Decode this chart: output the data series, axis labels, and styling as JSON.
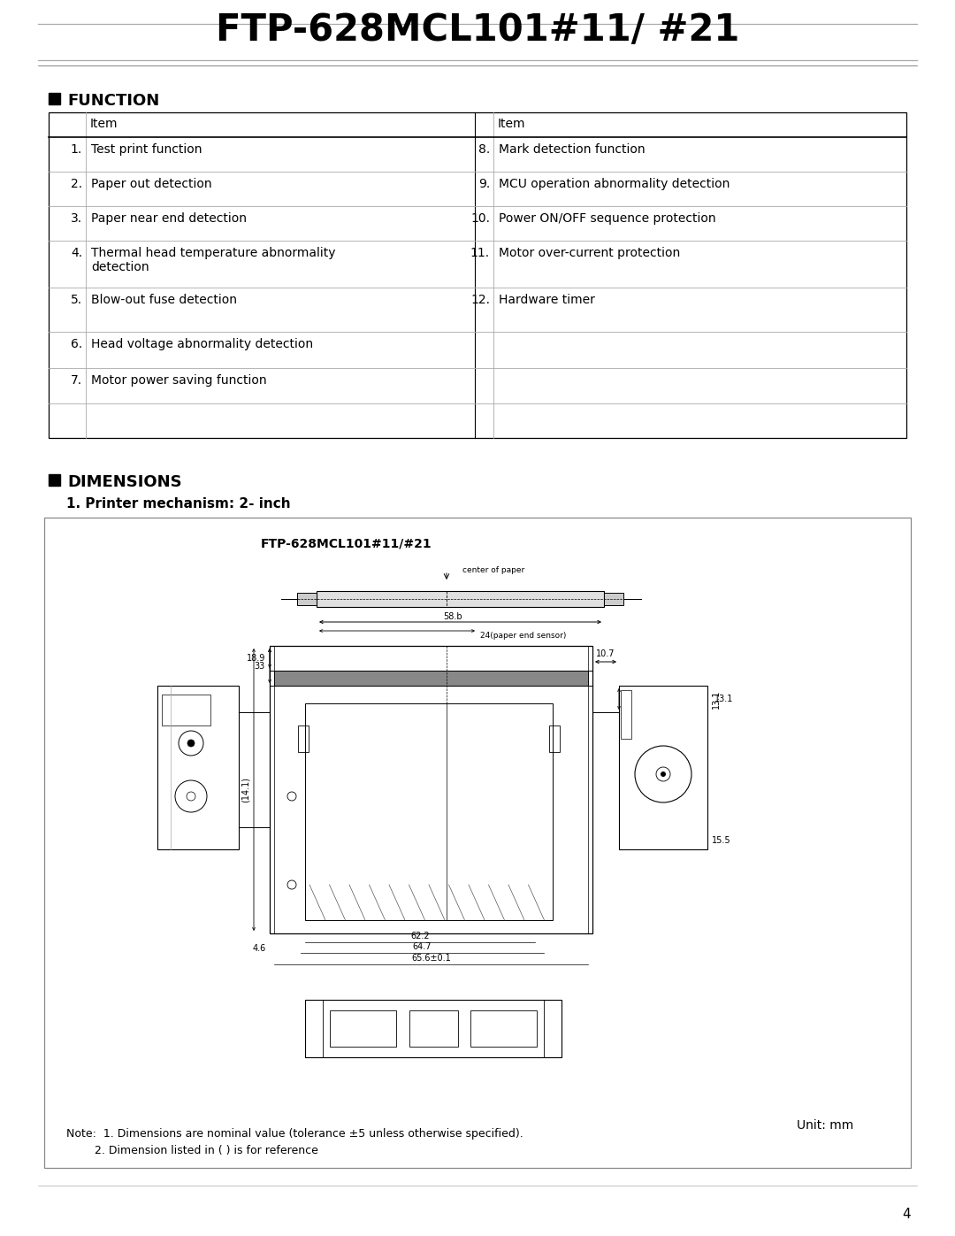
{
  "title": "FTP-628MCL101#11/ #21",
  "title_fontsize": 30,
  "title_fontweight": "bold",
  "page_bg": "#ffffff",
  "section1_header": "FUNCTION",
  "section2_header": "DIMENSIONS",
  "dimensions_sub": "1. Printer mechanism: 2- inch",
  "diagram_title": "FTP-628MCL101#11/#21",
  "table_col1_header": "Item",
  "table_col2_header": "Item",
  "table_rows_left": [
    [
      "1.",
      "Test print function"
    ],
    [
      "2.",
      "Paper out detection"
    ],
    [
      "3.",
      "Paper near end detection"
    ],
    [
      "4.",
      "Thermal head temperature abnormality\ndetection"
    ],
    [
      "5.",
      "Blow-out fuse detection"
    ],
    [
      "6.",
      "Head voltage abnormality detection"
    ],
    [
      "7.",
      "Motor power saving function"
    ]
  ],
  "table_rows_right": [
    [
      "8.",
      "Mark detection function"
    ],
    [
      "9.",
      "MCU operation abnormality detection"
    ],
    [
      "10.",
      "Power ON/OFF sequence protection"
    ],
    [
      "11.",
      "Motor over-current protection"
    ],
    [
      "12.",
      "Hardware timer"
    ],
    [
      "",
      ""
    ],
    [
      "",
      ""
    ]
  ],
  "note_line1": "Note:  1. Dimensions are nominal value (tolerance ±5 unless otherwise specified).",
  "note_line2": "        2. Dimension listed in ( ) is for reference",
  "unit_text": "Unit: mm",
  "page_number": "4",
  "text_color": "#000000"
}
